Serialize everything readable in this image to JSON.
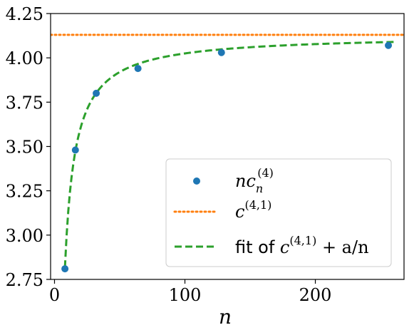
{
  "chart_data": {
    "type": "scatter",
    "xlabel": "n",
    "xlim": [
      -3,
      268
    ],
    "ylim": [
      2.75,
      4.25
    ],
    "xticks": [
      0,
      100,
      200
    ],
    "xtick_labels": [
      "0",
      "100",
      "200"
    ],
    "yticks": [
      2.75,
      3.0,
      3.25,
      3.5,
      3.75,
      4.0,
      4.25
    ],
    "ytick_labels": [
      "2.75",
      "3.00",
      "3.25",
      "3.50",
      "3.75",
      "4.00",
      "4.25"
    ],
    "grid": false,
    "legend_position": "lower-right",
    "series": [
      {
        "name": "nc_n^(4)",
        "kind": "points",
        "color": "#1f77b4",
        "x": [
          8,
          16,
          32,
          64,
          128,
          256
        ],
        "y": [
          2.81,
          3.48,
          3.8,
          3.94,
          4.03,
          4.07
        ]
      },
      {
        "name": "c^(4,1)",
        "kind": "hline",
        "color": "#ff7f0e",
        "style": "dotted",
        "y": 4.13
      },
      {
        "name": "fit of c^(4,1) + a/n",
        "kind": "curve",
        "color": "#2ca02c",
        "style": "dashed",
        "formula": "c + a/n",
        "c": 4.13,
        "a": -10.5,
        "x_range": [
          8,
          260
        ]
      }
    ]
  },
  "legend": {
    "points": {
      "base": "nc",
      "sub": "n",
      "sup": "(4)"
    },
    "hline": {
      "base": "c",
      "sup": "(4,1)"
    },
    "fit": {
      "prefix": "fit of ",
      "base": "c",
      "sup": "(4,1)",
      "suffix": " + a/n"
    }
  }
}
